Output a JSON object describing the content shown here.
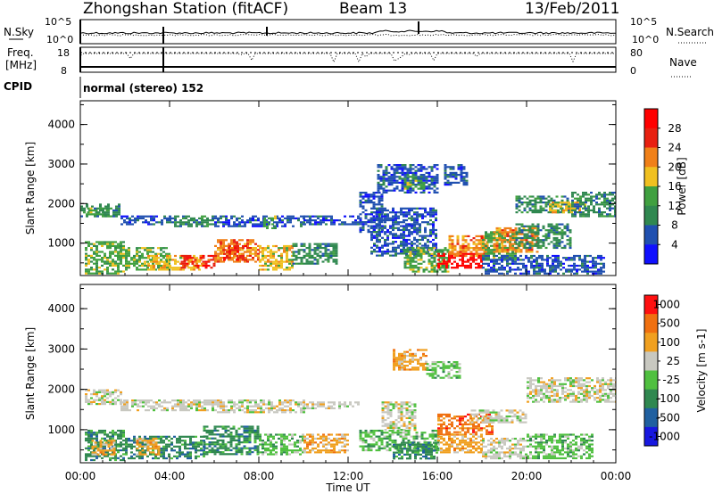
{
  "header": {
    "station": "Zhongshan Station (fitACF)",
    "beam": "Beam 13",
    "date": "13/Feb/2011"
  },
  "top_panels": {
    "nsky_label": "N.Sky",
    "nsky_ticks": [
      "10^5",
      "10^0"
    ],
    "nsearch_label": "N.Search",
    "nsearch_ticks": [
      "10^5",
      "10^0"
    ],
    "freq_label_1": "Freq.",
    "freq_label_2": "[MHz]",
    "freq_ticks": [
      "18",
      "8"
    ],
    "nave_label": "Nave",
    "nave_ticks": [
      "80",
      "0"
    ],
    "cpid_label": "CPID",
    "cpid_value": "normal (stereo) 152"
  },
  "chart_data": [
    {
      "type": "heatmap",
      "name": "power",
      "xlabel": "",
      "ylabel": "Slant Range [km]",
      "x_ticks": [
        "00:00",
        "04:00",
        "08:00",
        "12:00",
        "16:00",
        "20:00",
        "00:00"
      ],
      "y_ticks": [
        "1000",
        "2000",
        "3000",
        "4000"
      ],
      "xlim": [
        0,
        24
      ],
      "ylim": [
        180,
        4600
      ],
      "colorbar": {
        "label": "Power [dB]",
        "ticks": [
          "4",
          "8",
          "12",
          "16",
          "20",
          "24",
          "28"
        ],
        "range": [
          0,
          32
        ],
        "colors": [
          "#1010ff",
          "#2050b0",
          "#308850",
          "#40a040",
          "#f0c020",
          "#f08018",
          "#e82010",
          "#ff0000"
        ]
      },
      "regions": [
        {
          "t0": 0.0,
          "t1": 1.8,
          "r0": 1700,
          "r1": 2000,
          "level": 8
        },
        {
          "t0": 0.3,
          "t1": 1.2,
          "r0": 1750,
          "r1": 1900,
          "level": 13
        },
        {
          "t0": 1.8,
          "t1": 4.2,
          "r0": 1500,
          "r1": 1700,
          "level": 7
        },
        {
          "t0": 4.2,
          "t1": 6.0,
          "r0": 1450,
          "r1": 1700,
          "level": 8
        },
        {
          "t0": 6.0,
          "t1": 10.0,
          "r0": 1450,
          "r1": 1700,
          "level": 7
        },
        {
          "t0": 8.2,
          "t1": 8.8,
          "r0": 1400,
          "r1": 1700,
          "level": 12
        },
        {
          "t0": 10.0,
          "t1": 12.5,
          "r0": 1500,
          "r1": 1700,
          "level": 6
        },
        {
          "t0": 0.2,
          "t1": 2.0,
          "r0": 250,
          "r1": 1050,
          "level": 13
        },
        {
          "t0": 2.0,
          "t1": 4.0,
          "r0": 350,
          "r1": 900,
          "level": 14
        },
        {
          "t0": 3.0,
          "t1": 5.5,
          "r0": 350,
          "r1": 700,
          "level": 18
        },
        {
          "t0": 4.5,
          "t1": 6.0,
          "r0": 400,
          "r1": 700,
          "level": 24
        },
        {
          "t0": 6.0,
          "t1": 8.0,
          "r0": 550,
          "r1": 1100,
          "level": 22
        },
        {
          "t0": 6.4,
          "t1": 7.4,
          "r0": 600,
          "r1": 950,
          "level": 26
        },
        {
          "t0": 8.0,
          "t1": 9.5,
          "r0": 350,
          "r1": 950,
          "level": 18
        },
        {
          "t0": 9.5,
          "t1": 11.5,
          "r0": 500,
          "r1": 1000,
          "level": 8
        },
        {
          "t0": 12.5,
          "t1": 13.5,
          "r0": 1300,
          "r1": 2300,
          "level": 5
        },
        {
          "t0": 13.3,
          "t1": 16.0,
          "r0": 2300,
          "r1": 3000,
          "level": 7
        },
        {
          "t0": 14.5,
          "t1": 15.4,
          "r0": 2400,
          "r1": 2700,
          "level": 14
        },
        {
          "t0": 16.3,
          "t1": 17.3,
          "r0": 2500,
          "r1": 3000,
          "level": 6
        },
        {
          "t0": 13.0,
          "t1": 16.0,
          "r0": 700,
          "r1": 1900,
          "level": 6
        },
        {
          "t0": 14.5,
          "t1": 16.5,
          "r0": 300,
          "r1": 900,
          "level": 12
        },
        {
          "t0": 16.0,
          "t1": 18.0,
          "r0": 400,
          "r1": 750,
          "level": 28
        },
        {
          "t0": 16.5,
          "t1": 18.2,
          "r0": 700,
          "r1": 1200,
          "level": 20
        },
        {
          "t0": 18.0,
          "t1": 19.5,
          "r0": 600,
          "r1": 1300,
          "level": 12
        },
        {
          "t0": 18.5,
          "t1": 20.5,
          "r0": 800,
          "r1": 1400,
          "level": 20
        },
        {
          "t0": 19.5,
          "t1": 22.0,
          "r0": 900,
          "r1": 1500,
          "level": 9
        },
        {
          "t0": 19.5,
          "t1": 22.0,
          "r0": 1800,
          "r1": 2200,
          "level": 10
        },
        {
          "t0": 21.0,
          "t1": 22.6,
          "r0": 1800,
          "r1": 2050,
          "level": 17
        },
        {
          "t0": 22.0,
          "t1": 24.0,
          "r0": 1700,
          "r1": 2300,
          "level": 8
        },
        {
          "t0": 18.0,
          "t1": 23.5,
          "r0": 250,
          "r1": 700,
          "level": 6
        }
      ]
    },
    {
      "type": "heatmap",
      "name": "velocity",
      "xlabel": "Time UT",
      "ylabel": "Slant Range [km]",
      "x_ticks": [
        "00:00",
        "04:00",
        "08:00",
        "12:00",
        "16:00",
        "20:00",
        "00:00"
      ],
      "y_ticks": [
        "1000",
        "2000",
        "3000",
        "4000"
      ],
      "xlim": [
        0,
        24
      ],
      "ylim": [
        180,
        4600
      ],
      "colorbar": {
        "label": "Velocity [m s-1]",
        "ticks": [
          "1000",
          "500",
          "100",
          "25",
          "-25",
          "-100",
          "-500",
          "-1000"
        ],
        "colors": [
          "#1818e0",
          "#2060a0",
          "#308850",
          "#50c040",
          "#c8c8c0",
          "#f0a020",
          "#f07010",
          "#ff1010"
        ]
      },
      "regions": [
        {
          "t0": 0.2,
          "t1": 1.8,
          "r0": 1650,
          "r1": 2000,
          "level": 4
        },
        {
          "t0": 1.8,
          "t1": 6.0,
          "r0": 1500,
          "r1": 1750,
          "level": 4
        },
        {
          "t0": 6.0,
          "t1": 10.0,
          "r0": 1450,
          "r1": 1750,
          "level": 4
        },
        {
          "t0": 10.0,
          "t1": 12.5,
          "r0": 1550,
          "r1": 1700,
          "level": 4
        },
        {
          "t0": 0.2,
          "t1": 2.0,
          "r0": 250,
          "r1": 1000,
          "level": 2
        },
        {
          "t0": 0.5,
          "t1": 1.5,
          "r0": 400,
          "r1": 750,
          "level": 5
        },
        {
          "t0": 2.0,
          "t1": 5.5,
          "r0": 300,
          "r1": 850,
          "level": 2
        },
        {
          "t0": 2.5,
          "t1": 3.5,
          "r0": 400,
          "r1": 800,
          "level": 5
        },
        {
          "t0": 5.5,
          "t1": 8.0,
          "r0": 400,
          "r1": 1100,
          "level": 2
        },
        {
          "t0": 8.0,
          "t1": 10.0,
          "r0": 400,
          "r1": 900,
          "level": 3
        },
        {
          "t0": 10.0,
          "t1": 12.0,
          "r0": 450,
          "r1": 900,
          "level": 5
        },
        {
          "t0": 13.5,
          "t1": 15.0,
          "r0": 1000,
          "r1": 1700,
          "level": 4
        },
        {
          "t0": 14.0,
          "t1": 15.5,
          "r0": 2500,
          "r1": 3000,
          "level": 5
        },
        {
          "t0": 15.5,
          "t1": 17.0,
          "r0": 2300,
          "r1": 2700,
          "level": 3
        },
        {
          "t0": 12.5,
          "t1": 16.0,
          "r0": 500,
          "r1": 1000,
          "level": 3
        },
        {
          "t0": 14.0,
          "t1": 16.0,
          "r0": 300,
          "r1": 700,
          "level": 2
        },
        {
          "t0": 16.0,
          "t1": 18.0,
          "r0": 450,
          "r1": 900,
          "level": 5
        },
        {
          "t0": 16.0,
          "t1": 18.5,
          "r0": 900,
          "r1": 1400,
          "level": 6
        },
        {
          "t0": 17.5,
          "t1": 20.0,
          "r0": 1200,
          "r1": 1500,
          "level": 4
        },
        {
          "t0": 18.0,
          "t1": 20.0,
          "r0": 300,
          "r1": 800,
          "level": 4
        },
        {
          "t0": 20.0,
          "t1": 23.0,
          "r0": 300,
          "r1": 900,
          "level": 3
        },
        {
          "t0": 20.0,
          "t1": 24.0,
          "r0": 1700,
          "r1": 2300,
          "level": 4
        }
      ]
    }
  ]
}
